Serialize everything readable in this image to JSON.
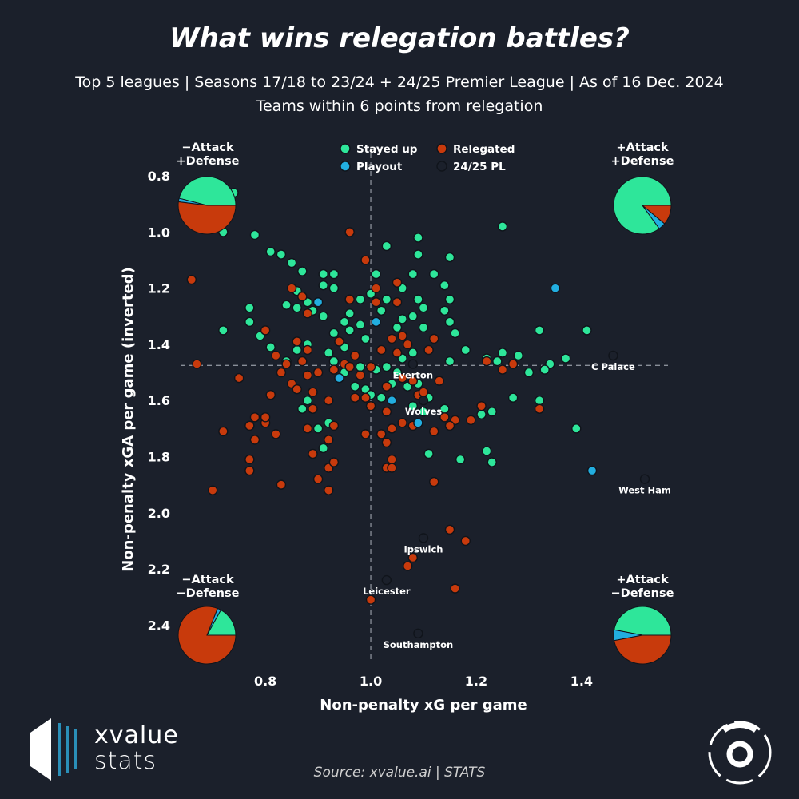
{
  "header": {
    "title": "What wins relegation battles?",
    "subtitle_line1": "Top 5 leagues | Seasons 17/18 to 23/24 + 24/25 Premier League | As of 16 Dec. 2024",
    "subtitle_line2": "Teams within 6 points from relegation"
  },
  "footer": {
    "source": "Source: xvalue.ai | STATS",
    "logo_line1": "xvalue",
    "logo_line2": "stats"
  },
  "colors": {
    "background": "#1b202b",
    "stayed_up": "#2ee69a",
    "relegated": "#c83a0c",
    "playout": "#22aee0",
    "pl_2425": "#1b202b"
  },
  "chart_data": {
    "type": "scatter",
    "title": "What wins relegation battles?",
    "xlabel": "Non-penalty xG per game",
    "ylabel": "Non-penalty xGA per game (inverted)",
    "xlim": [
      0.63,
      1.57
    ],
    "ylim": [
      0.7,
      2.55
    ],
    "y_inverted": true,
    "xticks": [
      "0.8",
      "1.0",
      "1.2",
      "1.4"
    ],
    "yticks": [
      "0.8",
      "1.0",
      "1.2",
      "1.4",
      "1.6",
      "1.8",
      "2.0",
      "2.2",
      "2.4"
    ],
    "reference_lines": {
      "x": 1.0,
      "y": 1.475
    },
    "grid": false,
    "legend_position": "top-center",
    "legend": [
      "Stayed up",
      "Relegated",
      "Playout",
      "24/25 PL"
    ],
    "quadrant_labels": {
      "top_left": [
        "−Attack",
        "+Defense"
      ],
      "top_right": [
        "+Attack",
        "+Defense"
      ],
      "bottom_left": [
        "−Attack",
        "−Defense"
      ],
      "bottom_right": [
        "+Attack",
        "−Defense"
      ]
    },
    "quadrant_pies": {
      "top_left": {
        "stayed_up": 0.46,
        "playout": 0.02,
        "relegated": 0.52
      },
      "top_right": {
        "stayed_up": 0.85,
        "playout": 0.04,
        "relegated": 0.11
      },
      "bottom_left": {
        "stayed_up": 0.17,
        "playout": 0.02,
        "relegated": 0.81
      },
      "bottom_right": {
        "stayed_up": 0.47,
        "playout": 0.06,
        "relegated": 0.47
      }
    },
    "series": [
      {
        "name": "Stayed up",
        "points": [
          [
            0.74,
            0.86
          ],
          [
            0.72,
            1.0
          ],
          [
            0.78,
            1.01
          ],
          [
            0.81,
            1.07
          ],
          [
            0.83,
            1.08
          ],
          [
            0.85,
            1.11
          ],
          [
            0.87,
            1.14
          ],
          [
            0.91,
            1.15
          ],
          [
            0.93,
            1.15
          ],
          [
            1.03,
            1.05
          ],
          [
            1.09,
            1.02
          ],
          [
            1.09,
            1.08
          ],
          [
            1.15,
            1.09
          ],
          [
            1.25,
            0.98
          ],
          [
            1.01,
            1.15
          ],
          [
            1.08,
            1.15
          ],
          [
            1.12,
            1.15
          ],
          [
            1.14,
            1.19
          ],
          [
            1.06,
            1.2
          ],
          [
            1.03,
            1.24
          ],
          [
            1.09,
            1.24
          ],
          [
            1.1,
            1.27
          ],
          [
            1.15,
            1.24
          ],
          [
            0.91,
            1.19
          ],
          [
            0.86,
            1.21
          ],
          [
            0.84,
            1.26
          ],
          [
            0.86,
            1.27
          ],
          [
            0.88,
            1.25
          ],
          [
            0.89,
            1.28
          ],
          [
            0.91,
            1.3
          ],
          [
            0.93,
            1.2
          ],
          [
            0.96,
            1.29
          ],
          [
            0.98,
            1.24
          ],
          [
            1.0,
            1.22
          ],
          [
            0.95,
            1.32
          ],
          [
            0.93,
            1.36
          ],
          [
            0.92,
            1.43
          ],
          [
            0.95,
            1.41
          ],
          [
            0.96,
            1.35
          ],
          [
            0.98,
            1.33
          ],
          [
            0.99,
            1.38
          ],
          [
            1.02,
            1.28
          ],
          [
            1.06,
            1.31
          ],
          [
            1.08,
            1.3
          ],
          [
            1.05,
            1.34
          ],
          [
            1.1,
            1.34
          ],
          [
            1.14,
            1.28
          ],
          [
            1.15,
            1.32
          ],
          [
            1.16,
            1.36
          ],
          [
            1.18,
            1.42
          ],
          [
            1.15,
            1.46
          ],
          [
            1.22,
            1.45
          ],
          [
            1.25,
            1.43
          ],
          [
            1.24,
            1.46
          ],
          [
            1.28,
            1.44
          ],
          [
            1.32,
            1.35
          ],
          [
            1.37,
            1.45
          ],
          [
            1.41,
            1.35
          ],
          [
            1.34,
            1.47
          ],
          [
            1.32,
            1.6
          ],
          [
            1.33,
            1.49
          ],
          [
            1.3,
            1.5
          ],
          [
            1.27,
            1.59
          ],
          [
            1.39,
            1.7
          ],
          [
            1.23,
            1.64
          ],
          [
            1.21,
            1.65
          ],
          [
            1.22,
            1.78
          ],
          [
            1.23,
            1.82
          ],
          [
            1.17,
            1.81
          ],
          [
            1.11,
            1.79
          ],
          [
            1.14,
            1.63
          ],
          [
            1.11,
            1.59
          ],
          [
            1.09,
            1.54
          ],
          [
            1.07,
            1.55
          ],
          [
            1.05,
            1.5
          ],
          [
            1.04,
            1.54
          ],
          [
            1.06,
            1.45
          ],
          [
            1.08,
            1.43
          ],
          [
            1.03,
            1.48
          ],
          [
            1.01,
            1.49
          ],
          [
            1.02,
            1.59
          ],
          [
            0.99,
            1.56
          ],
          [
            1.0,
            1.58
          ],
          [
            0.97,
            1.55
          ],
          [
            0.98,
            1.48
          ],
          [
            0.95,
            1.5
          ],
          [
            0.93,
            1.46
          ],
          [
            0.88,
            1.4
          ],
          [
            0.86,
            1.42
          ],
          [
            0.84,
            1.46
          ],
          [
            0.81,
            1.41
          ],
          [
            0.79,
            1.37
          ],
          [
            0.77,
            1.32
          ],
          [
            0.77,
            1.27
          ],
          [
            0.72,
            1.35
          ],
          [
            0.88,
            1.6
          ],
          [
            0.87,
            1.63
          ],
          [
            0.9,
            1.7
          ],
          [
            0.92,
            1.68
          ],
          [
            0.91,
            1.77
          ],
          [
            1.08,
            1.62
          ],
          [
            1.1,
            1.64
          ]
        ]
      },
      {
        "name": "Relegated",
        "points": [
          [
            0.66,
            1.17
          ],
          [
            0.67,
            1.47
          ],
          [
            0.7,
            1.92
          ],
          [
            0.72,
            1.71
          ],
          [
            0.75,
            1.52
          ],
          [
            0.77,
            1.81
          ],
          [
            0.77,
            1.85
          ],
          [
            0.78,
            1.66
          ],
          [
            0.77,
            1.69
          ],
          [
            0.78,
            1.74
          ],
          [
            0.8,
            1.68
          ],
          [
            0.8,
            1.66
          ],
          [
            0.8,
            1.35
          ],
          [
            0.82,
            1.44
          ],
          [
            0.84,
            1.47
          ],
          [
            0.83,
            1.5
          ],
          [
            0.81,
            1.58
          ],
          [
            0.82,
            1.72
          ],
          [
            0.83,
            1.9
          ],
          [
            0.85,
            1.54
          ],
          [
            0.86,
            1.56
          ],
          [
            0.86,
            1.39
          ],
          [
            0.85,
            1.2
          ],
          [
            0.87,
            1.23
          ],
          [
            0.88,
            1.29
          ],
          [
            0.87,
            1.46
          ],
          [
            0.88,
            1.42
          ],
          [
            0.88,
            1.51
          ],
          [
            0.89,
            1.57
          ],
          [
            0.9,
            1.5
          ],
          [
            0.89,
            1.63
          ],
          [
            0.88,
            1.7
          ],
          [
            0.89,
            1.79
          ],
          [
            0.9,
            1.88
          ],
          [
            0.92,
            1.92
          ],
          [
            0.92,
            1.84
          ],
          [
            0.93,
            1.82
          ],
          [
            0.92,
            1.74
          ],
          [
            0.93,
            1.69
          ],
          [
            0.92,
            1.6
          ],
          [
            0.93,
            1.49
          ],
          [
            0.95,
            1.47
          ],
          [
            0.94,
            1.39
          ],
          [
            0.96,
            1.48
          ],
          [
            0.97,
            1.44
          ],
          [
            0.97,
            1.59
          ],
          [
            0.98,
            1.51
          ],
          [
            0.99,
            1.59
          ],
          [
            1.0,
            1.48
          ],
          [
            0.99,
            1.72
          ],
          [
            1.0,
            1.62
          ],
          [
            0.99,
            1.1
          ],
          [
            0.96,
            1.0
          ],
          [
            0.96,
            1.24
          ],
          [
            1.01,
            1.25
          ],
          [
            1.02,
            1.42
          ],
          [
            1.03,
            1.55
          ],
          [
            1.04,
            1.38
          ],
          [
            1.05,
            1.43
          ],
          [
            1.06,
            1.37
          ],
          [
            1.07,
            1.4
          ],
          [
            1.08,
            1.53
          ],
          [
            1.09,
            1.58
          ],
          [
            1.1,
            1.57
          ],
          [
            1.11,
            1.42
          ],
          [
            1.12,
            1.38
          ],
          [
            1.13,
            1.53
          ],
          [
            1.14,
            1.66
          ],
          [
            1.12,
            1.89
          ],
          [
            1.16,
            1.67
          ],
          [
            1.15,
            1.69
          ],
          [
            1.22,
            1.46
          ],
          [
            1.25,
            1.49
          ],
          [
            1.27,
            1.47
          ],
          [
            1.32,
            1.63
          ],
          [
            1.21,
            1.62
          ],
          [
            1.19,
            1.67
          ],
          [
            1.06,
            1.68
          ],
          [
            1.04,
            1.7
          ],
          [
            1.03,
            1.84
          ],
          [
            1.04,
            1.81
          ],
          [
            1.03,
            1.64
          ],
          [
            1.02,
            1.72
          ],
          [
            1.03,
            1.75
          ],
          [
            1.06,
            1.52
          ],
          [
            1.05,
            1.25
          ],
          [
            1.01,
            1.2
          ],
          [
            1.05,
            1.18
          ],
          [
            1.08,
            1.69
          ],
          [
            1.12,
            1.71
          ],
          [
            1.15,
            2.06
          ],
          [
            1.18,
            2.1
          ],
          [
            1.16,
            2.27
          ],
          [
            1.08,
            2.16
          ],
          [
            1.07,
            2.19
          ],
          [
            1.0,
            2.31
          ],
          [
            1.04,
            1.84
          ]
        ]
      },
      {
        "name": "Playout",
        "points": [
          [
            0.9,
            1.25
          ],
          [
            0.94,
            1.52
          ],
          [
            1.01,
            1.32
          ],
          [
            1.04,
            1.6
          ],
          [
            1.09,
            1.68
          ],
          [
            1.35,
            1.2
          ],
          [
            1.42,
            1.85
          ]
        ]
      },
      {
        "name": "24/25 PL",
        "points": [
          {
            "x": 1.46,
            "y": 1.44,
            "label": "C Palace"
          },
          {
            "x": 1.1,
            "y": 1.6,
            "label": "Wolves"
          },
          {
            "x": 1.08,
            "y": 1.47,
            "label": "Everton"
          },
          {
            "x": 1.52,
            "y": 1.88,
            "label": "West Ham"
          },
          {
            "x": 1.1,
            "y": 2.09,
            "label": "Ipswich"
          },
          {
            "x": 1.03,
            "y": 2.24,
            "label": "Leicester"
          },
          {
            "x": 1.09,
            "y": 2.43,
            "label": "Southampton"
          }
        ]
      }
    ]
  }
}
